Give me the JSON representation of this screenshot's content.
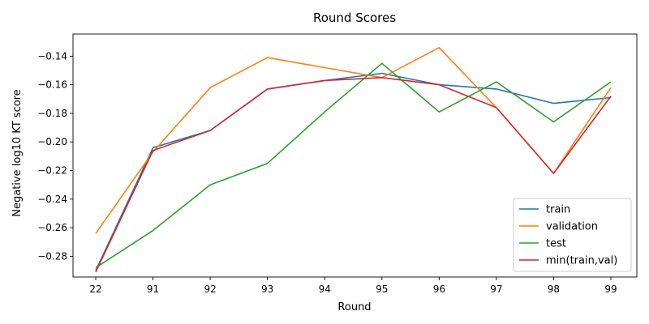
{
  "chart_data": {
    "type": "line",
    "title": "Round Scores",
    "xlabel": "Round",
    "ylabel": "Negative log10 KT score",
    "categories": [
      "22",
      "91",
      "92",
      "93",
      "94",
      "95",
      "96",
      "97",
      "98",
      "99"
    ],
    "yticks": [
      "−0.28",
      "−0.26",
      "−0.24",
      "−0.22",
      "−0.20",
      "−0.18",
      "−0.16",
      "−0.14"
    ],
    "ytick_values": [
      -0.28,
      -0.26,
      -0.24,
      -0.22,
      -0.2,
      -0.18,
      -0.16,
      -0.14
    ],
    "ylim": [
      -0.2945,
      -0.1245
    ],
    "grid": false,
    "legend_position": "lower right",
    "series": [
      {
        "name": "train",
        "color": "#1f77b4",
        "values": [
          -0.29,
          -0.204,
          -0.192,
          -0.163,
          -0.157,
          -0.152,
          -0.16,
          -0.163,
          -0.173,
          -0.169
        ]
      },
      {
        "name": "validation",
        "color": "#ff7f0e",
        "values": [
          -0.264,
          -0.207,
          -0.162,
          -0.141,
          -0.148,
          -0.155,
          -0.134,
          -0.176,
          -0.222,
          -0.162
        ]
      },
      {
        "name": "test",
        "color": "#2ca02c",
        "values": [
          -0.288,
          -0.262,
          -0.23,
          -0.215,
          -0.179,
          -0.145,
          -0.179,
          -0.158,
          -0.186,
          -0.158
        ]
      },
      {
        "name": "min(train,val)",
        "color": "#d62728",
        "values": [
          -0.291,
          -0.206,
          -0.192,
          -0.163,
          -0.157,
          -0.155,
          -0.16,
          -0.176,
          -0.222,
          -0.168
        ]
      }
    ]
  }
}
